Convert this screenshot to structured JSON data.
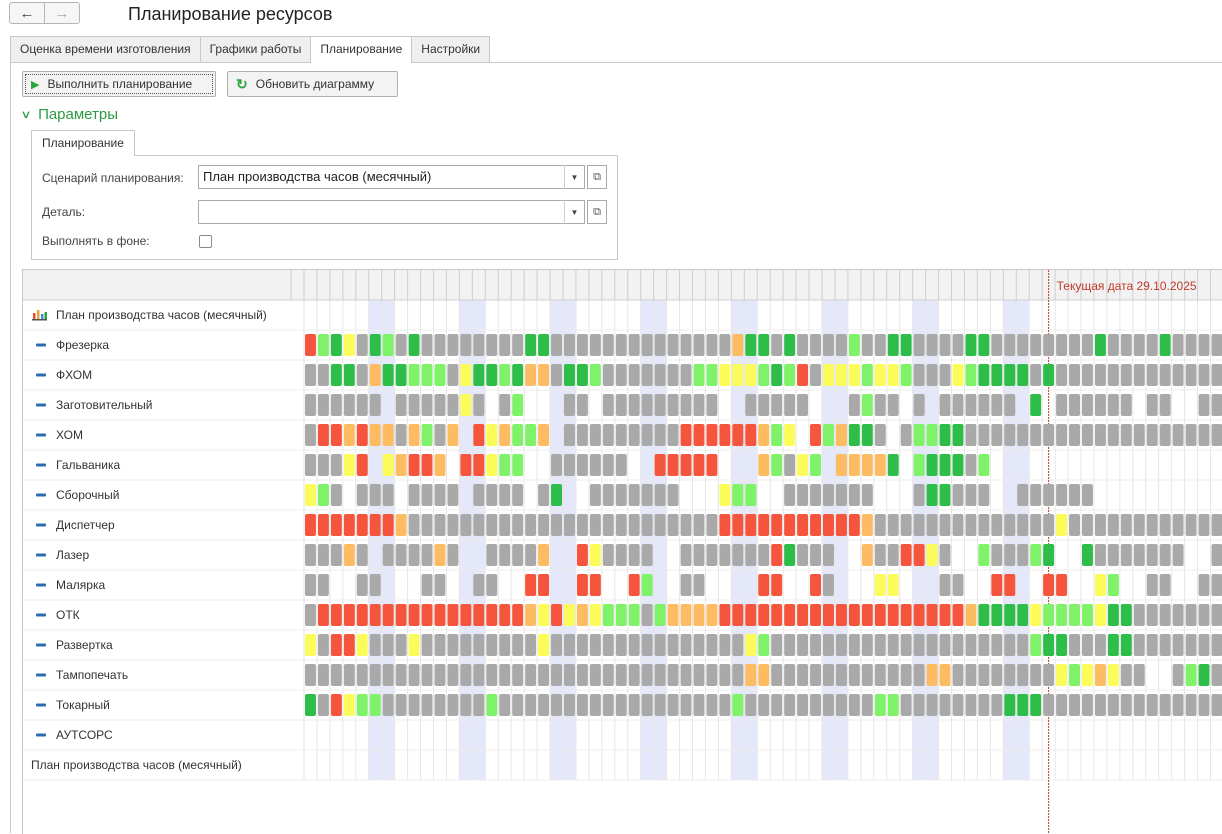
{
  "window": {
    "title": "Планирование ресурсов",
    "back_icon": "←",
    "forward_icon": "→"
  },
  "tabs": [
    {
      "label": "Оценка времени изготовления",
      "active": false
    },
    {
      "label": "Графики работы",
      "active": false
    },
    {
      "label": "Планирование",
      "active": true
    },
    {
      "label": "Настройки",
      "active": false
    }
  ],
  "toolbar": {
    "run_label": "Выполнить планирование",
    "refresh_label": "Обновить диаграмму"
  },
  "params": {
    "header": "Параметры",
    "subtab": "Планирование",
    "scenario_label": "Сценарий планирования:",
    "scenario_value": "План производства часов (месячный)",
    "detail_label": "Деталь:",
    "detail_value": "",
    "background_label": "Выполнять в фоне:",
    "background_checked": false
  },
  "gantt": {
    "current_date_label": "Текущая дата 29.10.2025",
    "root_label": "План производства часов (месячный)",
    "footer_label": "План производства часов (месячный)",
    "colors": {
      "g": "#a9a9a9",
      "G": "#2ebd48",
      "L": "#7ff26a",
      "Y": "#fbfb5a",
      "O": "#fdbb62",
      "R": "#f4553c",
      "weekend": "#e4e8fa",
      "current_line": "#c0392b"
    },
    "rows": [
      {
        "name": "Фрезерка",
        "cells": "RLGYgGLgGggggggggGGggggggggggggggOGGgGggggLggGGggggGGggggggggGggggGgggggggggggggggggggggggggggg"
      },
      {
        "name": "ФХОМ",
        "cells": "ggGGgOGGLLLgYGGLGOOgGGLgggggggLLYYYLGLRgYYYLYYLgggYLGGGGgGggggggggggggggggggggggggggggggggggg"
      },
      {
        "name": "Заготовительный",
        "cells": "gggggg.gggggYg.gL...gg.ggggggggg..ggggg...gLgg.g.gggggg.G.gggggg.gg..gg.ggg"
      },
      {
        "name": "ХОМ",
        "cells": "gRROROOgOLgO.RYOLLO.gggggggggRRRRRROLY.RLOGGg.gLLGGgggggggggggggggggggggggg"
      },
      {
        "name": "Гальваника",
        "cells": "gggYR.YORRO.RRYLL..gggggg..RRRRR...OLgYL.OOOOG.LGGGgL"
      },
      {
        "name": "Сборочный",
        "cells": "YLg.ggg.gggg.gggg.gG..ggggggg...YLL..ggggggg...gGGggg..gggggg"
      },
      {
        "name": "Диспетчер",
        "cells": "RRRRRRROggggggggggggggggggggggggRRRRRRRRRRROggggggggggggggYggggggggggggggggggggggg"
      },
      {
        "name": "Лазер",
        "cells": "gggOg.ggggOg..ggggO..RYgggg..gggggggRGggg..OggRRYg..LgggLG..Gggggggg..gg"
      },
      {
        "name": "Малярка",
        "cells": "gg..gg...gg..gg..RR..RR..RL..gg....RR..Rg...YY...gg..RR..RR..YL..gg..gg"
      },
      {
        "name": "ОТК",
        "cells": "gRRRRRRRRRRRRRRRROYRYOYLLLgLOOOORRRRRRRRRRRRRRRRRRROGGGGYLLLLYGGggggggg"
      },
      {
        "name": "Развертка",
        "cells": "YgRRYgggYgggggggggYgggggggggggggggYLggggggggggggggggggggLGGgggGGggggggggggggggggggggg"
      },
      {
        "name": "Тампопечать",
        "cells": "ggggggggggggggggggggggggggggggggggOOggggggggggggOOggggggggYLYOYgg..gLGg"
      },
      {
        "name": "Токарный",
        "cells": "GgRYLLggggggggLggggggggggggggggggLggggggggggLLggggggggGGGgggggggggggggggggggggg"
      },
      {
        "name": "АУТСОРС",
        "cells": ""
      }
    ]
  }
}
